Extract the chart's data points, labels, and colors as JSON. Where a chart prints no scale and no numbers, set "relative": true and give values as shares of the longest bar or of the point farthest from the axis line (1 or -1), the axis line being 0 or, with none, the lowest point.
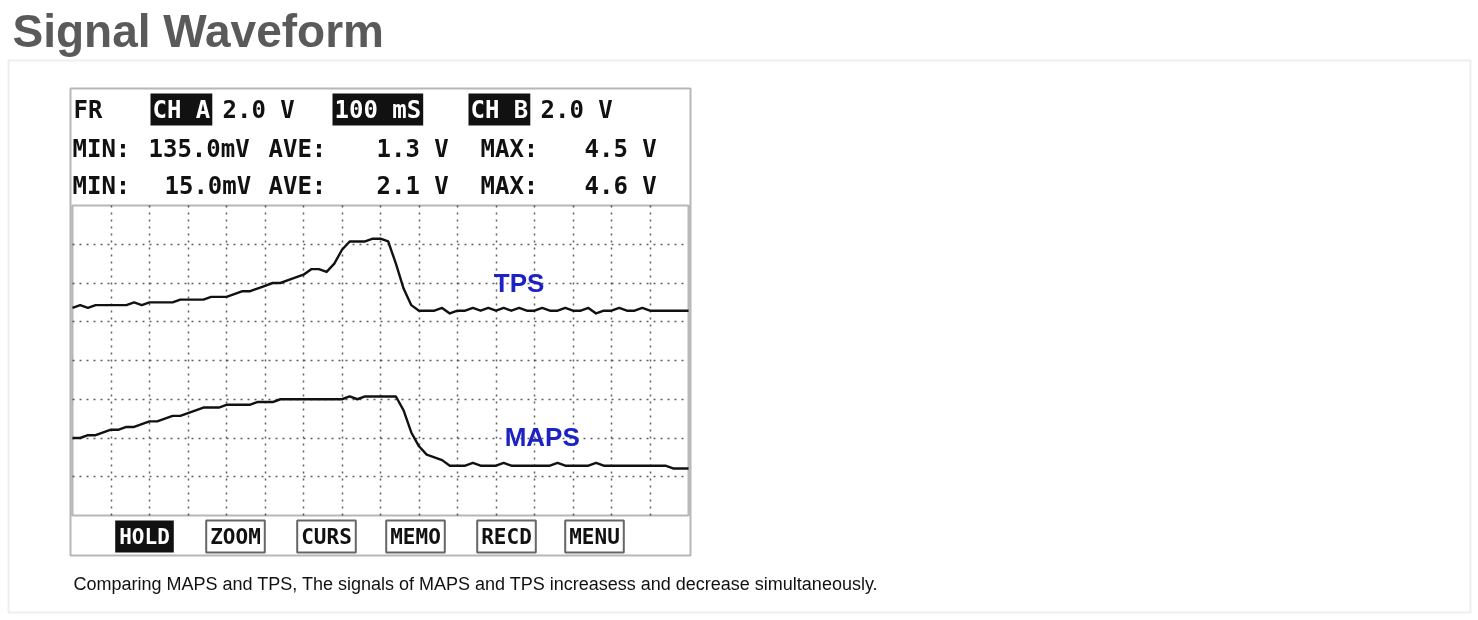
{
  "chart_data": {
    "type": "line",
    "title": "Signal Waveform",
    "relative": true,
    "grid": true,
    "tick_labels": false,
    "categories": [
      null,
      null,
      null,
      null,
      null,
      null,
      null,
      null,
      null,
      null,
      null,
      null,
      null,
      null,
      null,
      null,
      null,
      null,
      null,
      null,
      null,
      null,
      null,
      null,
      null,
      null,
      null,
      null,
      null,
      null,
      null,
      null,
      null,
      null,
      null,
      null,
      null,
      null,
      null,
      null,
      null,
      null,
      null,
      null,
      null,
      null,
      null,
      null,
      null,
      null,
      null,
      null,
      null,
      null,
      null,
      null,
      null,
      null,
      null,
      null,
      null,
      null,
      null,
      null,
      null,
      null,
      null,
      null,
      null,
      null,
      null,
      null,
      null,
      null,
      null,
      null,
      null,
      null,
      null,
      null,
      null
    ],
    "series": [
      {
        "name": "TPS",
        "color": "#111111",
        "values": [
          0.75,
          0.76,
          0.75,
          0.76,
          0.76,
          0.76,
          0.76,
          0.76,
          0.77,
          0.76,
          0.77,
          0.77,
          0.77,
          0.77,
          0.78,
          0.78,
          0.78,
          0.78,
          0.79,
          0.79,
          0.79,
          0.8,
          0.81,
          0.81,
          0.82,
          0.83,
          0.84,
          0.84,
          0.85,
          0.86,
          0.87,
          0.89,
          0.89,
          0.88,
          0.91,
          0.96,
          0.99,
          0.99,
          0.99,
          1.0,
          1.0,
          0.99,
          0.91,
          0.82,
          0.76,
          0.74,
          0.74,
          0.74,
          0.75,
          0.73,
          0.74,
          0.74,
          0.75,
          0.74,
          0.75,
          0.74,
          0.75,
          0.74,
          0.75,
          0.74,
          0.74,
          0.75,
          0.74,
          0.74,
          0.75,
          0.74,
          0.74,
          0.75,
          0.73,
          0.74,
          0.74,
          0.75,
          0.74,
          0.74,
          0.75,
          0.74,
          0.74,
          0.74,
          0.74,
          0.74,
          0.74
        ]
      },
      {
        "name": "MAPS",
        "color": "#111111",
        "values": [
          0.28,
          0.28,
          0.29,
          0.29,
          0.3,
          0.31,
          0.31,
          0.32,
          0.32,
          0.33,
          0.34,
          0.34,
          0.35,
          0.36,
          0.36,
          0.37,
          0.38,
          0.39,
          0.39,
          0.39,
          0.4,
          0.4,
          0.4,
          0.4,
          0.41,
          0.41,
          0.41,
          0.42,
          0.42,
          0.42,
          0.42,
          0.42,
          0.42,
          0.42,
          0.42,
          0.42,
          0.43,
          0.42,
          0.43,
          0.43,
          0.43,
          0.43,
          0.43,
          0.38,
          0.3,
          0.25,
          0.22,
          0.21,
          0.2,
          0.18,
          0.18,
          0.18,
          0.19,
          0.18,
          0.18,
          0.18,
          0.19,
          0.18,
          0.18,
          0.18,
          0.18,
          0.18,
          0.18,
          0.19,
          0.18,
          0.18,
          0.18,
          0.18,
          0.19,
          0.18,
          0.18,
          0.18,
          0.18,
          0.18,
          0.18,
          0.18,
          0.18,
          0.18,
          0.17,
          0.17,
          0.17
        ]
      }
    ],
    "annotations": [
      "FR",
      "CH A",
      "2.0 V",
      "100 mS",
      "CH B",
      "2.0 V",
      "MIN:",
      "135.0mV",
      "AVE:",
      "1.3 V",
      "MAX:",
      "4.5 V",
      "MIN:",
      "15.0mV",
      "AVE:",
      "2.1 V",
      "MAX:",
      "4.6 V",
      "HOLD",
      "ZOOM",
      "CURS",
      "MEMO",
      "RECD",
      "MENU",
      "Comparing MAPS and TPS, The signals of MAPS and TPS increasess and decrease simultaneously."
    ]
  }
}
